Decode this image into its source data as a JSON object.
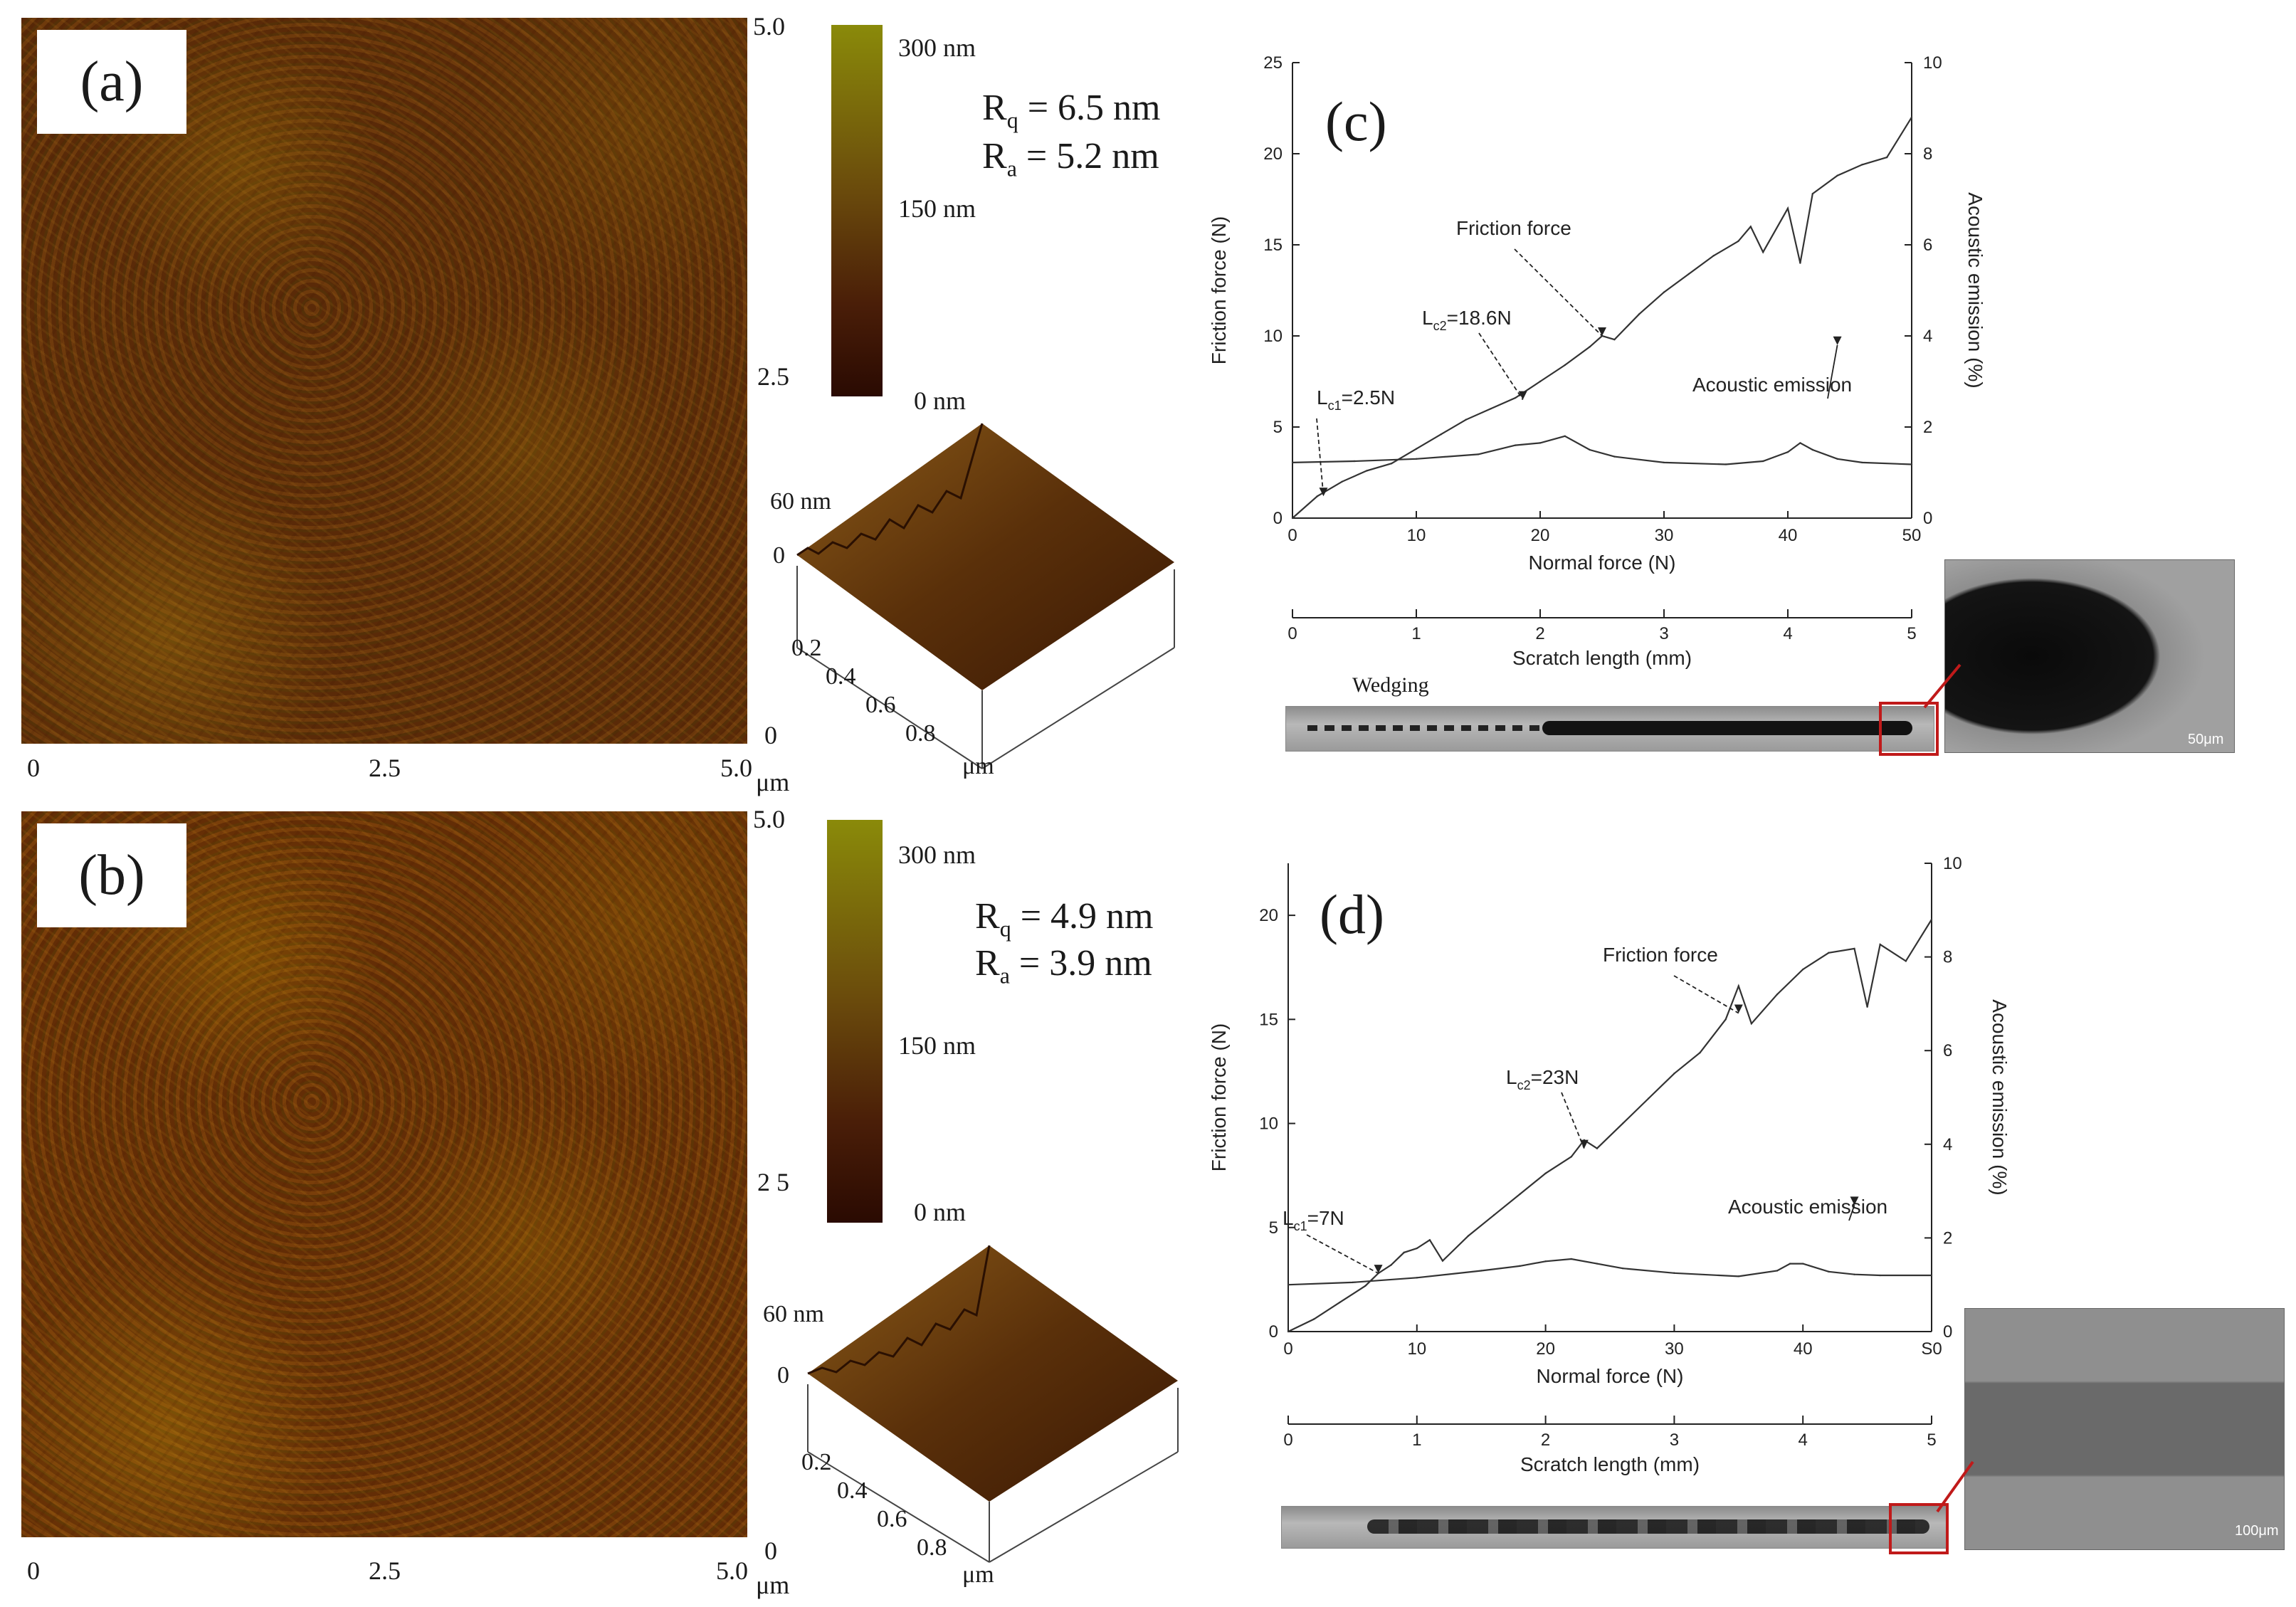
{
  "panels": {
    "a": {
      "label": "(a)",
      "axis_ticks_x": [
        "0",
        "2.5",
        "5.0"
      ],
      "axis_ticks_y": [
        "5.0",
        "2.5",
        "0"
      ],
      "axis_unit": "μm",
      "scale_labels": [
        "300 nm",
        "150 nm",
        "0 nm"
      ],
      "rq": "R",
      "rq_sub": "q",
      "rq_value": "= 6.5 nm",
      "ra": "R",
      "ra_sub": "a",
      "ra_value": "= 5.2 nm",
      "surface_z_labels": [
        "60 nm",
        "0"
      ],
      "surface_x_ticks": [
        "0.2",
        "0.4",
        "0.6",
        "0.8"
      ],
      "surface_unit": "μm"
    },
    "b": {
      "label": "(b)",
      "axis_ticks_x": [
        "0",
        "2.5",
        "5.0"
      ],
      "axis_ticks_y": [
        "5.0",
        "2 5",
        "0"
      ],
      "axis_unit": "μm",
      "scale_labels": [
        "300 nm",
        "150 nm",
        "0 nm"
      ],
      "rq": "R",
      "rq_sub": "q",
      "rq_value": "= 4.9 nm",
      "ra": "R",
      "ra_sub": "a",
      "ra_value": "= 3.9 nm",
      "surface_z_labels": [
        "60 nm",
        "0"
      ],
      "surface_x_ticks": [
        "0.2",
        "0.4",
        "0.6",
        "0.8"
      ],
      "surface_unit": "μm"
    }
  },
  "chart_data": [
    {
      "id": "c",
      "type": "line",
      "panel_label": "(c)",
      "xlabel": "Normal force (N)",
      "ylabel": "Friction force (N)",
      "y2label": "Acoustic emission (%)",
      "xlim": [
        0,
        50
      ],
      "ylim": [
        0,
        25
      ],
      "y2lim": [
        0,
        10
      ],
      "x_ticks": [
        "0",
        "10",
        "20",
        "30",
        "40",
        "50"
      ],
      "y_ticks": [
        "0",
        "5",
        "10",
        "15",
        "20",
        "25"
      ],
      "y2_ticks": [
        "0",
        "2",
        "4",
        "6",
        "8",
        "10"
      ],
      "secondary_axis_label": "Scratch length (mm)",
      "secondary_ticks": [
        "0",
        "1",
        "2",
        "3",
        "4",
        "5"
      ],
      "series": [
        {
          "name": "Friction force",
          "axis": "left",
          "x": [
            0,
            2,
            4,
            6,
            8,
            10,
            12,
            14,
            16,
            18,
            20,
            22,
            24,
            25,
            26,
            28,
            30,
            32,
            34,
            36,
            37,
            38,
            40,
            41,
            42,
            44,
            46,
            48,
            50
          ],
          "y": [
            0,
            1.2,
            2.0,
            2.6,
            3.0,
            3.8,
            4.6,
            5.4,
            6.0,
            6.6,
            7.5,
            8.4,
            9.4,
            10.0,
            9.8,
            11.2,
            12.4,
            13.4,
            14.4,
            15.2,
            16.0,
            14.6,
            17.0,
            14.0,
            17.8,
            18.8,
            19.4,
            19.8,
            22.0
          ]
        },
        {
          "name": "Acoustic emission",
          "axis": "right",
          "x": [
            0,
            5,
            10,
            15,
            18,
            20,
            22,
            24,
            26,
            30,
            35,
            38,
            40,
            41,
            42,
            44,
            46,
            50
          ],
          "y": [
            1.22,
            1.25,
            1.3,
            1.4,
            1.6,
            1.65,
            1.8,
            1.5,
            1.35,
            1.22,
            1.18,
            1.25,
            1.45,
            1.65,
            1.5,
            1.3,
            1.22,
            1.18
          ]
        }
      ],
      "annotations": [
        {
          "text": "Friction force",
          "at_x": 25,
          "at_y": 10
        },
        {
          "text": "L",
          "sub": "c2",
          "suffix": "=18.6N",
          "at_x": 18.6,
          "at_y": 6.5
        },
        {
          "text": "L",
          "sub": "c1",
          "suffix": "=2.5N",
          "at_x": 2.5,
          "at_y": 1.2
        },
        {
          "text": "Acoustic emission",
          "at_x": 44,
          "at_y": 3.8
        }
      ],
      "wedging_label": "Wedging",
      "sem_scale": "50μm"
    },
    {
      "id": "d",
      "type": "line",
      "panel_label": "(d)",
      "xlabel": "Normal force (N)",
      "ylabel": "Friction force (N)",
      "y2label": "Acoustic emission (%)",
      "xlim": [
        0,
        50
      ],
      "ylim": [
        0,
        22.5
      ],
      "y2lim": [
        0,
        10
      ],
      "x_ticks": [
        "0",
        "10",
        "20",
        "30",
        "40",
        "S0"
      ],
      "y_ticks": [
        "0",
        "5",
        "10",
        "15",
        "20"
      ],
      "y2_ticks": [
        "0",
        "2",
        "4",
        "6",
        "8",
        "10"
      ],
      "secondary_axis_label": "Scratch length (mm)",
      "secondary_ticks": [
        "0",
        "1",
        "2",
        "3",
        "4",
        "5"
      ],
      "series": [
        {
          "name": "Friction force",
          "axis": "left",
          "x": [
            0,
            2,
            4,
            6,
            7,
            8,
            9,
            10,
            11,
            12,
            14,
            16,
            18,
            20,
            22,
            23,
            24,
            26,
            28,
            30,
            32,
            34,
            35,
            36,
            38,
            40,
            42,
            44,
            45,
            46,
            48,
            50
          ],
          "y": [
            0,
            0.6,
            1.4,
            2.2,
            2.8,
            3.2,
            3.8,
            4.0,
            4.4,
            3.4,
            4.6,
            5.6,
            6.6,
            7.6,
            8.4,
            9.2,
            8.8,
            10.0,
            11.2,
            12.4,
            13.4,
            15.0,
            16.6,
            14.8,
            16.2,
            17.4,
            18.2,
            18.4,
            15.6,
            18.6,
            17.8,
            19.8
          ]
        },
        {
          "name": "Acoustic emission",
          "axis": "right",
          "x": [
            0,
            5,
            10,
            15,
            18,
            20,
            22,
            24,
            26,
            30,
            35,
            38,
            39,
            40,
            42,
            44,
            46,
            50
          ],
          "y": [
            1.0,
            1.05,
            1.15,
            1.3,
            1.4,
            1.5,
            1.55,
            1.45,
            1.35,
            1.25,
            1.18,
            1.3,
            1.45,
            1.45,
            1.28,
            1.22,
            1.2,
            1.2
          ]
        }
      ],
      "annotations": [
        {
          "text": "Friction force",
          "at_x": 35,
          "at_y": 15.3
        },
        {
          "text": "L",
          "sub": "c2",
          "suffix": "=23N",
          "at_x": 23,
          "at_y": 8.8
        },
        {
          "text": "L",
          "sub": "c1",
          "suffix": "=7N",
          "at_x": 7,
          "at_y": 2.8
        },
        {
          "text": "Acoustic emission",
          "at_x": 44,
          "at_y": 2.7
        }
      ],
      "sem_scale": "100μm"
    }
  ]
}
